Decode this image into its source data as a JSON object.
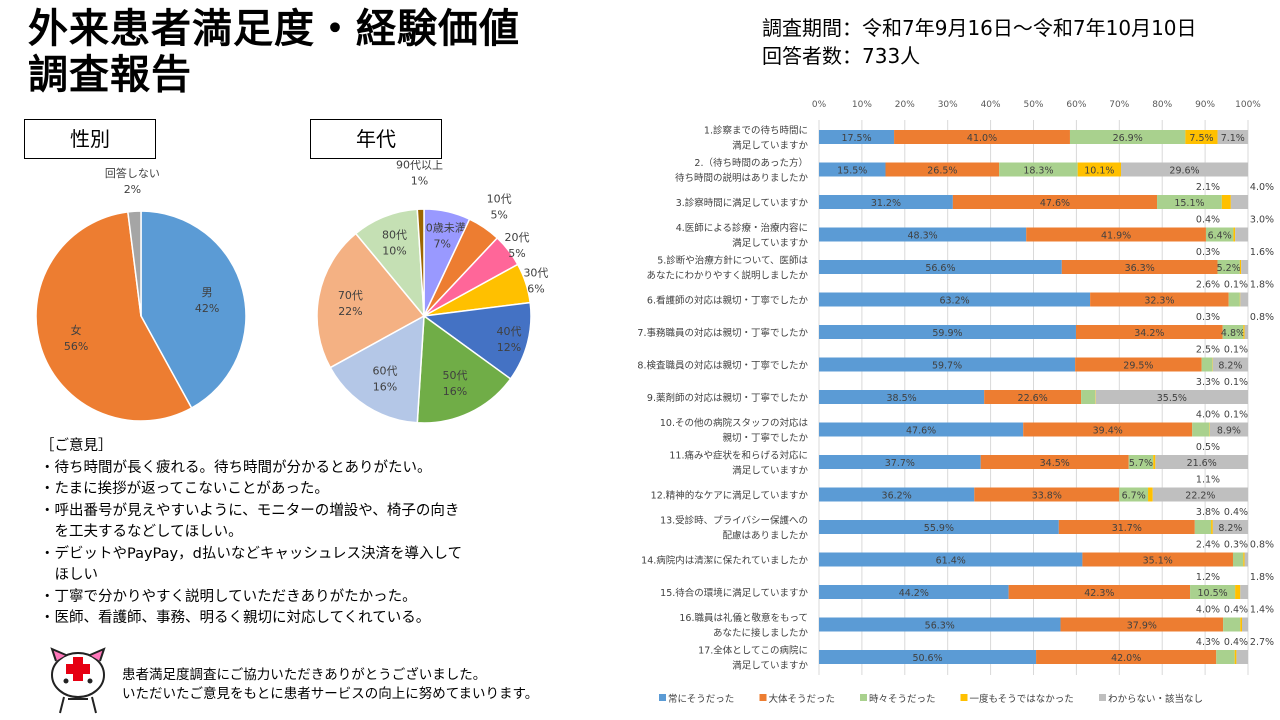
{
  "title": "外来患者満足度・経験価値\n調査報告",
  "title_lines": [
    "外来患者満足度・経験価値",
    "調査報告"
  ],
  "period": "調査期間：令和7年9月16日～令和7年10月10日",
  "respondents": "回答者数：733人",
  "gender_heading": "性別",
  "age_heading": "年代",
  "opinions": {
    "heading": "［ご意見］",
    "items": [
      "・待ち時間が長く疲れる。待ち時間が分かるとありがたい。",
      "・たまに挨拶が返ってこないことがあった。",
      "・呼出番号が見えやすいように、モニターの増設や、椅子の向き\n　を工夫するなどしてほしい。",
      "・デビットやPayPay，d払いなどキャッシュレス決済を導入して\n　ほしい",
      "・丁寧で分かりやすく説明していただきありがたかった。",
      "・医師、看護師、事務、明るく親切に対応してくれている。"
    ]
  },
  "thanks": [
    "患者満足度調査にご協力いただきありがとうございました。",
    "いただいたご意見をもとに患者サービスの向上に努めてまいります。"
  ],
  "chart_data": [
    {
      "type": "pie",
      "title": "性別",
      "categories": [
        "男",
        "女",
        "回答しない"
      ],
      "values": [
        42,
        56,
        2
      ],
      "labels": [
        "42%",
        "56%",
        "2%"
      ],
      "colors": [
        "#5b9bd5",
        "#ed7d31",
        "#a5a5a5"
      ]
    },
    {
      "type": "pie",
      "title": "年代",
      "categories": [
        "10歳未満",
        "10代",
        "20代",
        "30代",
        "40代",
        "50代",
        "60代",
        "70代",
        "80代",
        "90代以上"
      ],
      "values": [
        7,
        5,
        5,
        6,
        12,
        16,
        16,
        22,
        10,
        1
      ],
      "labels": [
        "7%",
        "5%",
        "5%",
        "6%",
        "12%",
        "16%",
        "16%",
        "22%",
        "10%",
        "1%"
      ],
      "colors": [
        "#9999ff",
        "#ed7d31",
        "#ff6699",
        "#ffc000",
        "#4472c4",
        "#70ad47",
        "#b4c7e7",
        "#f4b183",
        "#c5e0b4",
        "#9c6500"
      ]
    },
    {
      "type": "bar",
      "orientation": "horizontal",
      "stacked": "100%",
      "xlim": [
        0,
        100
      ],
      "ticks": [
        "0%",
        "10%",
        "20%",
        "30%",
        "40%",
        "50%",
        "60%",
        "70%",
        "80%",
        "90%",
        "100%"
      ],
      "grid": true,
      "legend": "bottom",
      "categories": [
        "1.診察までの待ち時間に\n満足していますか",
        "2.（待ち時間のあった方）\n待ち時間の説明はありましたか",
        "3.診察時間に満足していますか",
        "4.医師による診療・治療内容に\n満足していますか",
        "5.診断や治療方針について、医師は\nあなたにわかりやすく説明しましたか",
        "6.看護師の対応は親切・丁寧でしたか",
        "7.事務職員の対応は親切・丁寧でしたか",
        "8.検査職員の対応は親切・丁寧でしたか",
        "9.薬剤師の対応は親切・丁寧でしたか",
        "10.その他の病院スタッフの対応は\n親切・丁寧でしたか",
        "11.痛みや症状を和らげる対応に\n満足していますか",
        "12.精神的なケアに満足していますか",
        "13.受診時、プライバシー保護への\n配慮はありましたか",
        "14.病院内は清潔に保たれていましたか",
        "15.待合の環境に満足していますか",
        "16.職員は礼儀と敬意をもって\nあなたに接しましたか",
        "17.全体としてこの病院に\n満足していますか"
      ],
      "series": [
        {
          "name": "常にそうだった",
          "color": "#5b9bd5",
          "values": [
            17.5,
            15.5,
            31.2,
            48.3,
            56.6,
            63.2,
            59.9,
            59.7,
            38.5,
            47.6,
            37.7,
            36.2,
            55.9,
            61.4,
            44.2,
            56.3,
            50.6
          ]
        },
        {
          "name": "大体そうだった",
          "color": "#ed7d31",
          "values": [
            41.0,
            26.5,
            47.6,
            41.9,
            36.3,
            32.3,
            34.2,
            29.5,
            22.6,
            39.4,
            34.5,
            33.8,
            31.7,
            35.1,
            42.3,
            37.9,
            42.0
          ]
        },
        {
          "name": "時々そうだった",
          "color": "#a9d18e",
          "values": [
            26.9,
            18.3,
            15.1,
            6.4,
            5.2,
            2.6,
            4.8,
            2.5,
            3.3,
            4.0,
            5.7,
            6.7,
            3.8,
            2.4,
            10.5,
            4.0,
            4.3
          ]
        },
        {
          "name": "一度もそうではなかった",
          "color": "#ffc000",
          "values": [
            7.5,
            10.1,
            2.1,
            0.4,
            0.3,
            0.1,
            0.3,
            0.1,
            0.1,
            0.1,
            0.5,
            1.1,
            0.4,
            0.3,
            1.2,
            0.4,
            0.4
          ]
        },
        {
          "name": "わからない・該当なし",
          "color": "#bfbfbf",
          "values": [
            7.1,
            29.6,
            4.0,
            3.0,
            1.6,
            1.8,
            0.8,
            8.2,
            35.5,
            8.9,
            21.6,
            22.2,
            8.2,
            0.8,
            1.8,
            1.4,
            2.7
          ]
        }
      ]
    }
  ]
}
